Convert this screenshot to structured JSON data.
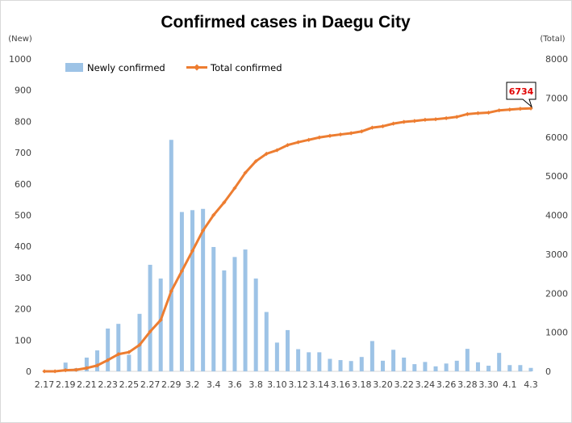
{
  "chart_data": {
    "type": "bar+line",
    "title": "Confirmed cases in Daegu City",
    "y_left_label": "(New)",
    "y_right_label": "(Total)",
    "y_left_range": [
      0,
      1000
    ],
    "y_left_ticks": [
      "0",
      "100",
      "200",
      "300",
      "400",
      "500",
      "600",
      "700",
      "800",
      "900",
      "1000"
    ],
    "y_right_range": [
      0,
      8000
    ],
    "y_right_ticks": [
      "0",
      "1000",
      "2000",
      "3000",
      "4000",
      "5000",
      "6000",
      "7000",
      "8000"
    ],
    "x_tick_labels": [
      "2.17",
      "2.19",
      "2.21",
      "2.23",
      "2.25",
      "2.27",
      "2.29",
      "3.2",
      "3.4",
      "3.6",
      "3.8",
      "3.10",
      "3.12",
      "3.14",
      "3.16",
      "3.18",
      "3.20",
      "3.22",
      "3.24",
      "3.26",
      "3.28",
      "3.30",
      "4.1",
      "4.3"
    ],
    "grid": false,
    "legend_position": "top-left",
    "colors": {
      "bar": "#9dc3e6",
      "line": "#ed7d31",
      "callout_text": "#e00000"
    },
    "series": [
      {
        "name": "Newly confirmed",
        "type": "bar",
        "axis": "left",
        "values": [
          1,
          0,
          28,
          10,
          44,
          67,
          137,
          152,
          53,
          184,
          341,
          297,
          741,
          510,
          516,
          520,
          398,
          323,
          366,
          390,
          297,
          190,
          92,
          132,
          71,
          61,
          61,
          40,
          36,
          33,
          46,
          97,
          34,
          69,
          44,
          23,
          30,
          16,
          25,
          34,
          72,
          29,
          18,
          59,
          20,
          20,
          11
        ]
      },
      {
        "name": "Total confirmed",
        "type": "line",
        "axis": "right",
        "values": [
          1,
          1,
          29,
          39,
          83,
          150,
          287,
          439,
          492,
          676,
          1017,
          1314,
          2055,
          2569,
          3085,
          3605,
          4003,
          4326,
          4692,
          5084,
          5381,
          5571,
          5663,
          5794,
          5867,
          5928,
          5990,
          6031,
          6066,
          6098,
          6144,
          6241,
          6275,
          6344,
          6387,
          6411,
          6442,
          6456,
          6482,
          6516,
          6587,
          6611,
          6624,
          6683,
          6703,
          6723,
          6734
        ]
      }
    ],
    "annotation": "6734"
  }
}
